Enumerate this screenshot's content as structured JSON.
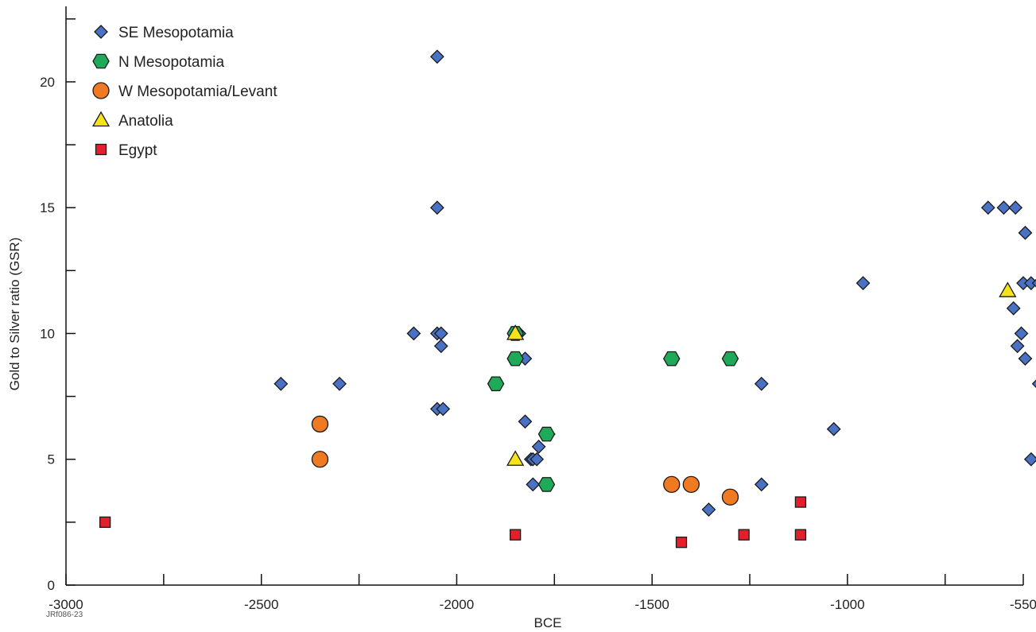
{
  "chart_data": {
    "type": "scatter",
    "xlabel": "BCE",
    "ylabel": "Gold to Silver ratio (GSR)",
    "xlim": [
      -3000,
      -550
    ],
    "ylim": [
      0,
      23
    ],
    "x_ticks": [
      -3000,
      -2500,
      -2000,
      -1500,
      -1000,
      -550
    ],
    "y_ticks": [
      0,
      5,
      10,
      15,
      20
    ],
    "legend_position": "top-left",
    "grid": false,
    "footnote": "JRf086-23",
    "series": [
      {
        "name": "SE Mesopotamia",
        "marker": "diamond",
        "color": "#4a72c4",
        "points": [
          [
            -2450,
            8
          ],
          [
            -2300,
            8
          ],
          [
            -2110,
            10
          ],
          [
            -2050,
            21
          ],
          [
            -2050,
            15
          ],
          [
            -2050,
            10
          ],
          [
            -2040,
            10
          ],
          [
            -2040,
            9.5
          ],
          [
            -2050,
            7
          ],
          [
            -2035,
            7
          ],
          [
            -1840,
            10
          ],
          [
            -1825,
            9
          ],
          [
            -1825,
            6.5
          ],
          [
            -1810,
            5
          ],
          [
            -1805,
            5
          ],
          [
            -1795,
            5
          ],
          [
            -1790,
            5.5
          ],
          [
            -1805,
            4
          ],
          [
            -1765,
            6
          ],
          [
            -1450,
            9
          ],
          [
            -1355,
            3
          ],
          [
            -1220,
            8
          ],
          [
            -1220,
            4
          ],
          [
            -1035,
            6.2
          ],
          [
            -960,
            12
          ],
          [
            -640,
            15
          ],
          [
            -600,
            15
          ],
          [
            -570,
            15
          ],
          [
            -545,
            14
          ],
          [
            -550,
            12
          ],
          [
            -530,
            12
          ],
          [
            -510,
            12
          ],
          [
            -575,
            11
          ],
          [
            -555,
            10
          ],
          [
            -565,
            9.5
          ],
          [
            -545,
            9
          ],
          [
            -510,
            8
          ],
          [
            -530,
            5
          ]
        ]
      },
      {
        "name": "N Mesopotamia",
        "marker": "hexagon",
        "color": "#1faa5a",
        "points": [
          [
            -1900,
            8
          ],
          [
            -1850,
            10
          ],
          [
            -1850,
            9
          ],
          [
            -1770,
            6
          ],
          [
            -1770,
            4
          ],
          [
            -1450,
            9
          ],
          [
            -1300,
            9
          ]
        ]
      },
      {
        "name": "W Mesopotamia/Levant",
        "marker": "circle",
        "color": "#f07a22",
        "points": [
          [
            -2350,
            6.4
          ],
          [
            -2350,
            5
          ],
          [
            -1450,
            4
          ],
          [
            -1400,
            4
          ],
          [
            -1300,
            3.5
          ]
        ]
      },
      {
        "name": "Anatolia",
        "marker": "triangle",
        "color": "#f6e31a",
        "points": [
          [
            -1850,
            10
          ],
          [
            -1850,
            5
          ],
          [
            -590,
            11.7
          ]
        ]
      },
      {
        "name": "Egypt",
        "marker": "square",
        "color": "#e41f2b",
        "points": [
          [
            -2900,
            2.5
          ],
          [
            -1850,
            2
          ],
          [
            -1425,
            1.7
          ],
          [
            -1265,
            2
          ],
          [
            -1120,
            3.3
          ],
          [
            -1120,
            2
          ]
        ]
      }
    ]
  }
}
